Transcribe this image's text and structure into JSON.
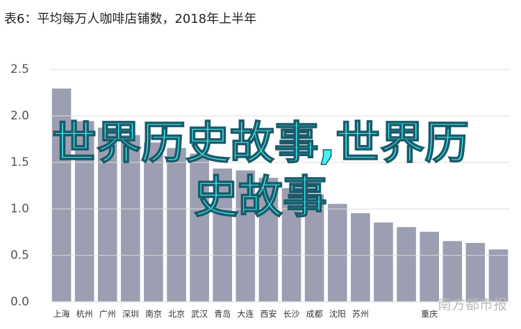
{
  "chart_data": {
    "type": "bar",
    "title": "表6：平均每万人咖啡店铺数，2018年上半年",
    "categories": [
      "上海",
      "杭州",
      "广州",
      "深圳",
      "南京",
      "北京",
      "武汉",
      "青岛",
      "大连",
      "西安",
      "长沙",
      "成都",
      "沈阳",
      "苏州",
      null,
      null,
      "重庆",
      null,
      null,
      null
    ],
    "values": [
      2.3,
      1.95,
      1.88,
      1.8,
      1.72,
      1.66,
      1.6,
      1.44,
      1.42,
      1.34,
      1.23,
      1.16,
      1.06,
      0.96,
      0.86,
      0.81,
      0.76,
      0.66,
      0.64,
      0.57
    ],
    "color": "#9c9fb2",
    "ylim": [
      0,
      2.5
    ],
    "yticks": [
      {
        "value": 0,
        "label": "0.0"
      },
      0.5,
      {
        "value": 1,
        "label": "1.0"
      },
      1.5,
      {
        "value": 2,
        "label": "2.0"
      },
      2.5
    ],
    "grid": true
  },
  "overlay_text": "世界历史故事,世界历史故事",
  "watermark": "南方都市报"
}
